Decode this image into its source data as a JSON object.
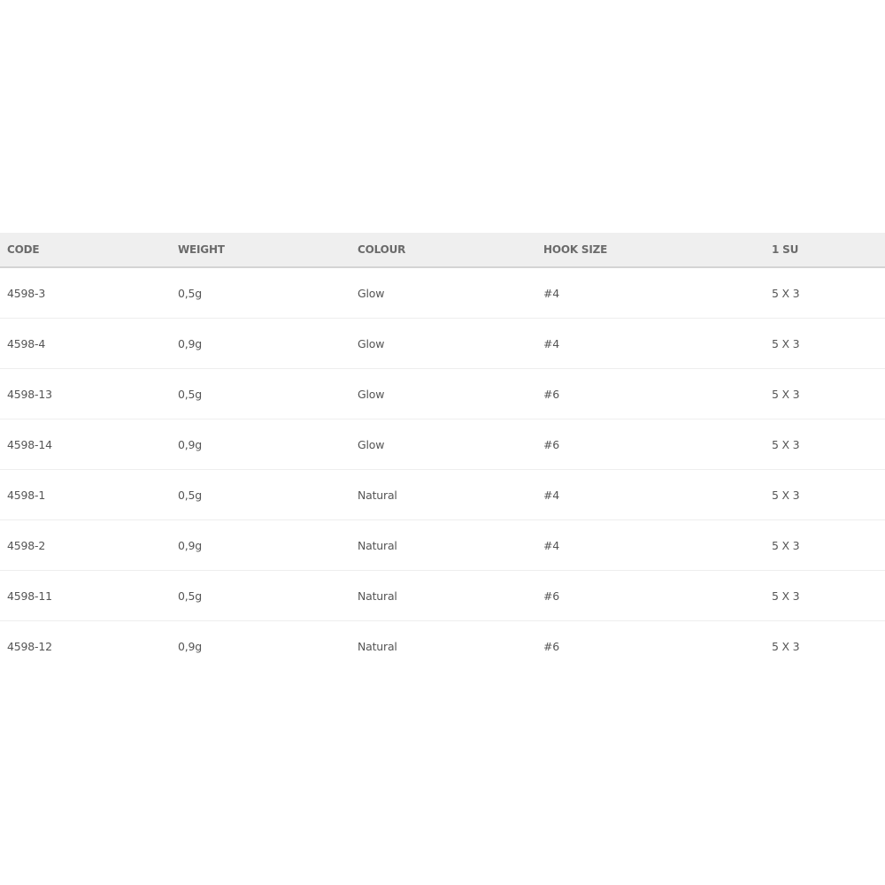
{
  "table": {
    "headers": [
      "CODE",
      "WEIGHT",
      "COLOUR",
      "HOOK SIZE",
      "1 SU"
    ],
    "rows": [
      [
        "4598-3",
        "0,5g",
        "Glow",
        "#4",
        "5 X 3"
      ],
      [
        "4598-4",
        "0,9g",
        "Glow",
        "#4",
        "5 X 3"
      ],
      [
        "4598-13",
        "0,5g",
        "Glow",
        "#6",
        "5 X 3"
      ],
      [
        "4598-14",
        "0,9g",
        "Glow",
        "#6",
        "5 X 3"
      ],
      [
        "4598-1",
        "0,5g",
        "Natural",
        "#4",
        "5 X 3"
      ],
      [
        "4598-2",
        "0,9g",
        "Natural",
        "#4",
        "5 X 3"
      ],
      [
        "4598-11",
        "0,5g",
        "Natural",
        "#6",
        "5 X 3"
      ],
      [
        "4598-12",
        "0,9g",
        "Natural",
        "#6",
        "5 X 3"
      ]
    ]
  }
}
